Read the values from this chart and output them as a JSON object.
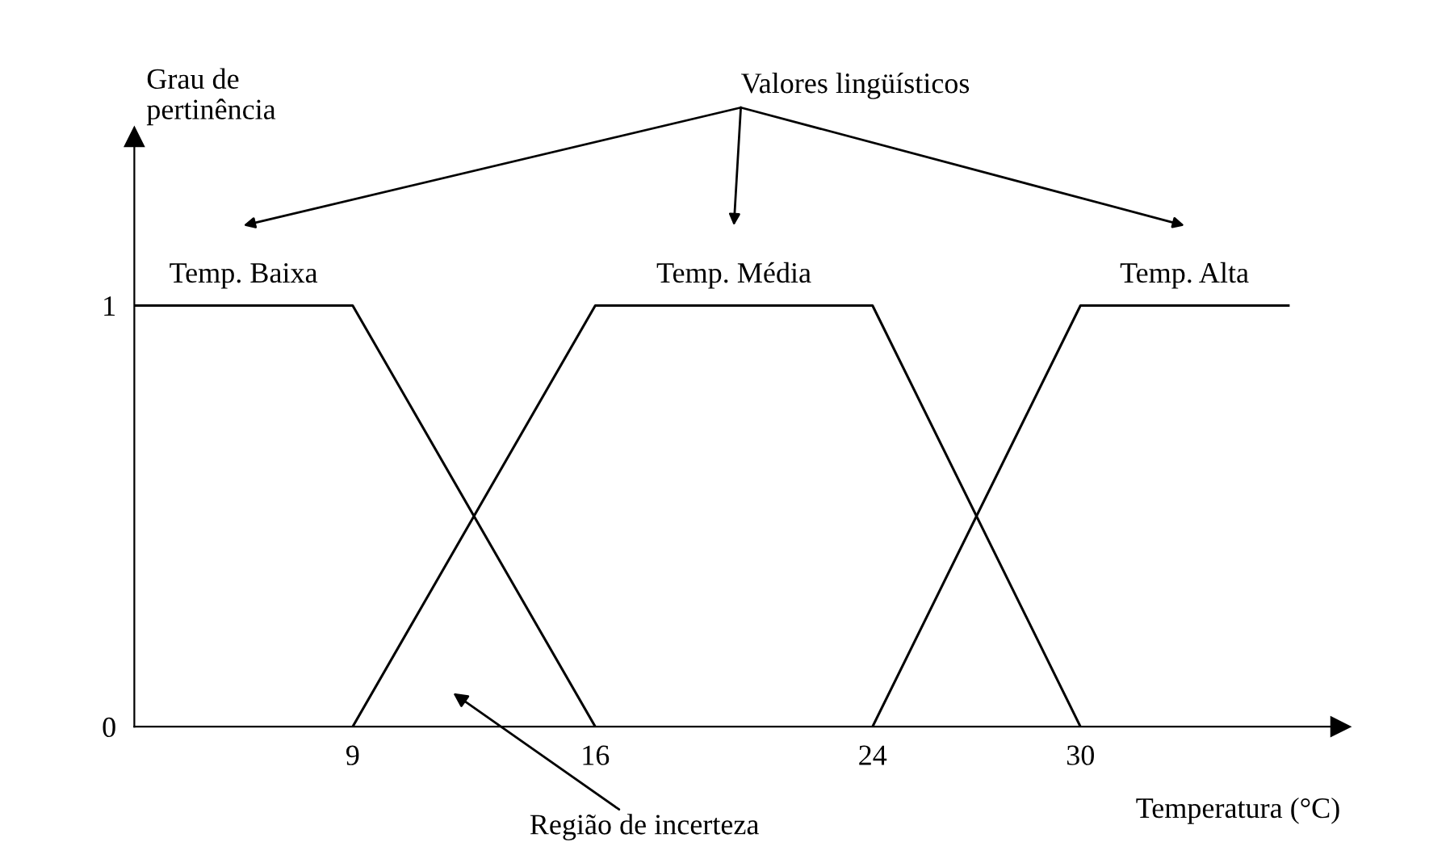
{
  "chart_data": {
    "type": "line",
    "xlabel": "Temperatura (°C)",
    "ylabel": "Grau de\npertinência",
    "xlim": [
      2.7,
      37.5
    ],
    "ylim": [
      0,
      1.4
    ],
    "xticks": [
      9,
      16,
      24,
      30
    ],
    "yticks": [
      0,
      1
    ],
    "grid": false,
    "legend": false,
    "marker": "none",
    "line_style": "solid",
    "series": [
      {
        "name": "Temp. Baixa",
        "color": "#000000",
        "x": [
          2.7,
          9,
          16
        ],
        "values": [
          1,
          1,
          0
        ]
      },
      {
        "name": "Temp. Média",
        "color": "#000000",
        "x": [
          9,
          16,
          24,
          30
        ],
        "values": [
          0,
          1,
          1,
          0
        ]
      },
      {
        "name": "Temp. Alta",
        "color": "#000000",
        "x": [
          24,
          30,
          36
        ],
        "values": [
          0,
          1,
          1
        ]
      }
    ],
    "annotations": [
      "Valores lingüísticos",
      "Região de incerteza"
    ]
  }
}
